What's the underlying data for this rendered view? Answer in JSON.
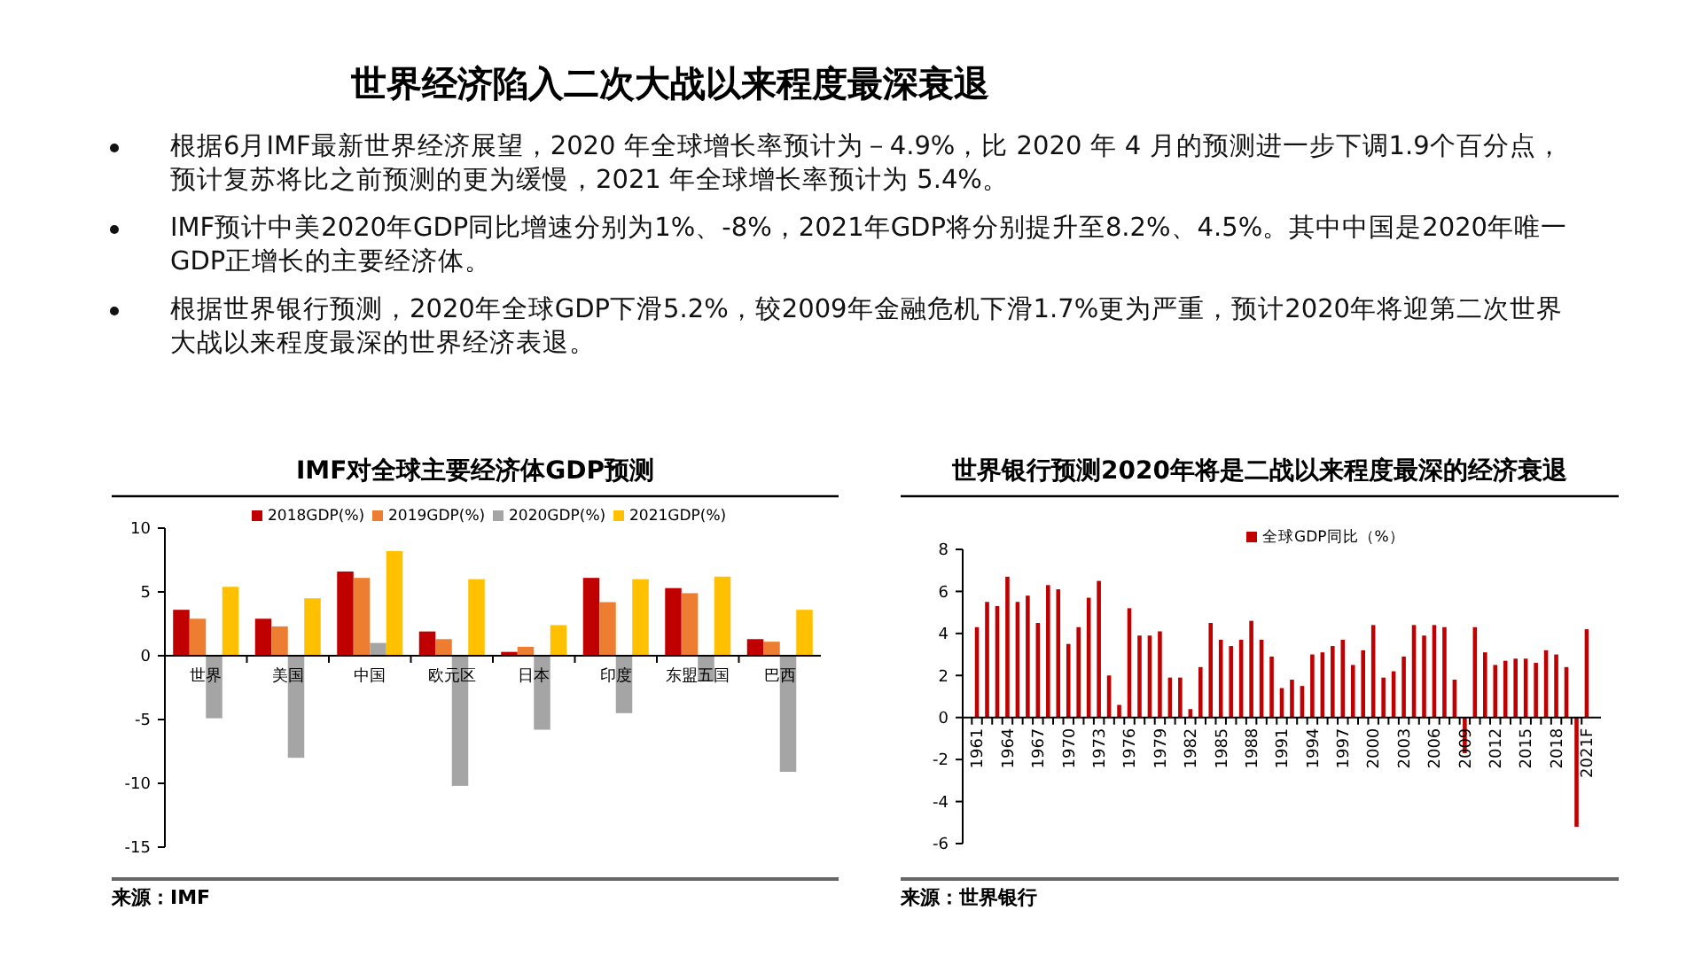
{
  "chart_data": [
    {
      "type": "other",
      "title": "世界经济陷入二次大战以来程度最深衰退",
      "annotations": [
        "根据6月IMF最新世界经济展望，2020 年全球增长率预计为－4.9%，比 2020 年 4 月的预测进一步下调1.9个百分点，预计复苏将比之前预测的更为缓慢，2021 年全球增长率预计为 5.4%。",
        "IMF预计中美2020年GDP同比增速分别为1%、-8%，2021年GDP将分别提升至8.2%、4.5%。其中中国是2020年唯一GDP正增长的主要经济体。",
        "根据世界银行预测，2020年全球GDP下滑5.2%，较2009年金融危机下滑1.7%更为严重，预计2020年将迎第二次世界大战以来程度最深的世界经济表退。"
      ]
    },
    {
      "type": "bar",
      "title": "IMF对全球主要经济体GDP预测",
      "categories": [
        "世界",
        "美国",
        "中国",
        "欧元区",
        "日本",
        "印度",
        "东盟五国",
        "巴西"
      ],
      "series": [
        {
          "name": "2018GDP(%)",
          "color": "#c00000",
          "values": [
            3.6,
            2.9,
            6.6,
            1.9,
            0.3,
            6.1,
            5.3,
            1.3
          ]
        },
        {
          "name": "2019GDP(%)",
          "color": "#ed7d31",
          "values": [
            2.9,
            2.3,
            6.1,
            1.3,
            0.7,
            4.2,
            4.9,
            1.1
          ]
        },
        {
          "name": "2020GDP(%)",
          "color": "#a5a5a5",
          "values": [
            -4.9,
            -8.0,
            1.0,
            -10.2,
            -5.8,
            -4.5,
            -2.0,
            -9.1
          ]
        },
        {
          "name": "2021GDP(%)",
          "color": "#ffc000",
          "values": [
            5.4,
            4.5,
            8.2,
            6.0,
            2.4,
            6.0,
            6.2,
            3.6
          ]
        }
      ],
      "ylim": [
        -15,
        10
      ],
      "yticks": [
        -15,
        -10,
        -5,
        0,
        5,
        10
      ],
      "legend": "top",
      "grid": false,
      "annotations": [
        "来源：IMF"
      ]
    },
    {
      "type": "bar",
      "title": "世界银行预测2020年将是二战以来程度最深的经济衰退",
      "categories": [
        "1961",
        null,
        null,
        "1964",
        null,
        null,
        "1967",
        null,
        null,
        "1970",
        null,
        null,
        "1973",
        null,
        null,
        "1976",
        null,
        null,
        "1979",
        null,
        null,
        "1982",
        null,
        null,
        "1985",
        null,
        null,
        "1988",
        null,
        null,
        "1991",
        null,
        null,
        "1994",
        null,
        null,
        "1997",
        null,
        null,
        "2000",
        null,
        null,
        "2003",
        null,
        null,
        "2006",
        null,
        null,
        "2009",
        null,
        null,
        "2012",
        null,
        null,
        "2015",
        null,
        null,
        "2018",
        null,
        null,
        "2021F"
      ],
      "series": [
        {
          "name": "全球GDP同比（%）",
          "color": "#c00000",
          "values": [
            4.3,
            5.5,
            5.3,
            6.7,
            5.5,
            5.8,
            4.5,
            6.3,
            6.1,
            3.5,
            4.3,
            5.7,
            6.5,
            2.0,
            0.6,
            5.2,
            3.9,
            3.9,
            4.1,
            1.9,
            1.9,
            0.4,
            2.4,
            4.5,
            3.7,
            3.4,
            3.7,
            4.6,
            3.7,
            2.9,
            1.4,
            1.8,
            1.5,
            3.0,
            3.1,
            3.4,
            3.7,
            2.5,
            3.2,
            4.4,
            1.9,
            2.2,
            2.9,
            4.4,
            3.9,
            4.4,
            4.3,
            1.8,
            -1.7,
            4.3,
            3.1,
            2.5,
            2.7,
            2.8,
            2.8,
            2.6,
            3.2,
            3.0,
            2.4,
            -5.2,
            4.2
          ]
        }
      ],
      "ylim": [
        -6,
        8
      ],
      "yticks": [
        -6,
        -4,
        -2,
        0,
        2,
        4,
        6,
        8
      ],
      "legend": "top",
      "grid": false,
      "annotations": [
        "来源：世界银行"
      ]
    }
  ]
}
